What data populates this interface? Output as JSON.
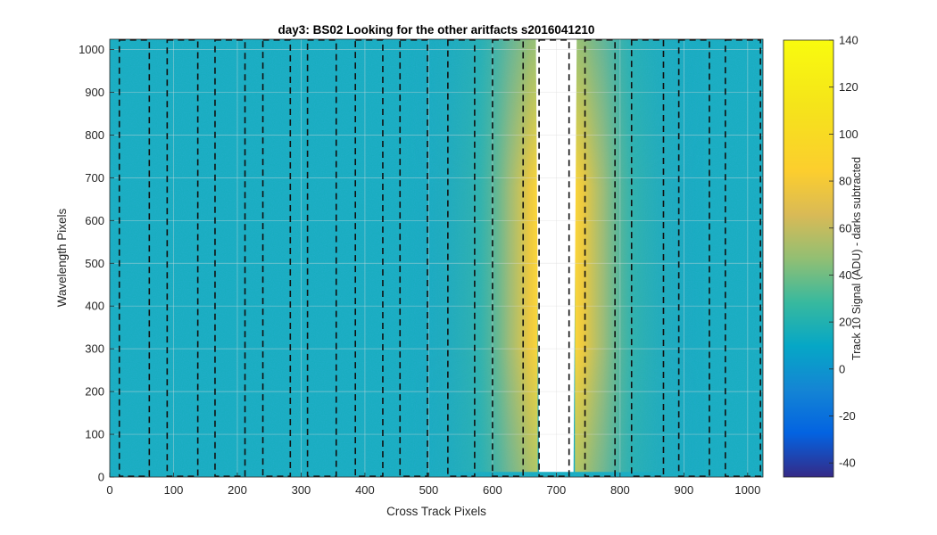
{
  "chart_data": {
    "type": "heatmap",
    "title": "day3: BS02  Looking for the other aritfacts  s2016041210",
    "xlabel": "Cross Track Pixels",
    "ylabel": "Wavelength Pixels",
    "xlim": [
      0,
      1024
    ],
    "ylim": [
      0,
      1024
    ],
    "x_ticks": [
      "0",
      "100",
      "200",
      "300",
      "400",
      "500",
      "600",
      "700",
      "800",
      "900",
      "1000"
    ],
    "y_ticks": [
      "0",
      "100",
      "200",
      "300",
      "400",
      "500",
      "600",
      "700",
      "800",
      "900",
      "1000"
    ],
    "grid": true,
    "colormap": "parula",
    "colorbar": {
      "label": "Track 10 Signal (ADU) - darks subtracted",
      "clim": [
        -46,
        140
      ],
      "ticks": [
        "-40",
        "-20",
        "0",
        "20",
        "40",
        "60",
        "80",
        "100",
        "120",
        "140"
      ]
    },
    "saturated_region": {
      "description_color": "#ffffff",
      "x_top": [
        668,
        732
      ],
      "x_bottom": [
        673,
        727
      ],
      "y_range": [
        12,
        1024
      ]
    },
    "dashed_boxes": [
      [
        15,
        62
      ],
      [
        90,
        138
      ],
      [
        165,
        212
      ],
      [
        240,
        283
      ],
      [
        310,
        355
      ],
      [
        385,
        428
      ],
      [
        455,
        498
      ],
      [
        530,
        572
      ],
      [
        600,
        648
      ],
      [
        673,
        720
      ],
      [
        745,
        792
      ],
      [
        818,
        868
      ],
      [
        892,
        940
      ],
      [
        965,
        1020
      ]
    ],
    "background_signal": 15
  }
}
